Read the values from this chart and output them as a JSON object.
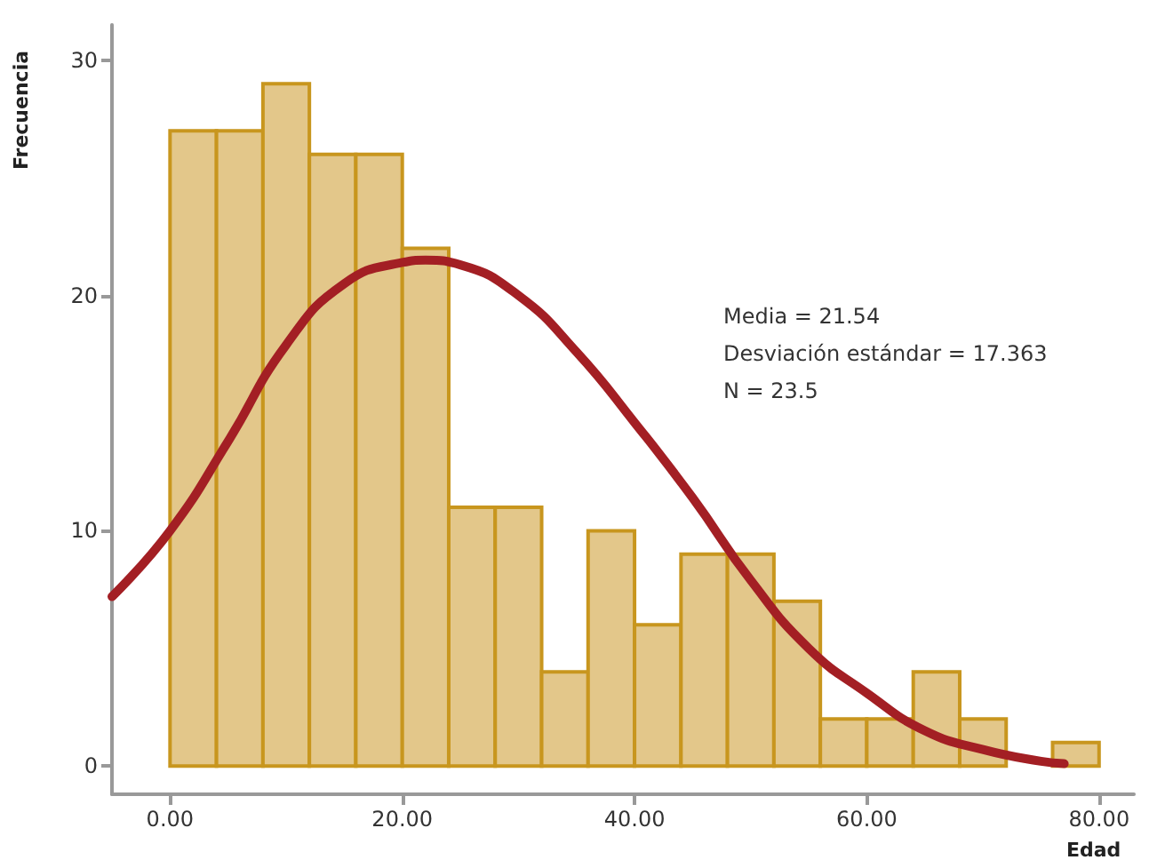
{
  "chart_data": {
    "type": "histogram",
    "xlabel": "Edad",
    "ylabel": "Frecuencia",
    "bins": [
      0,
      4,
      8,
      12,
      16,
      20,
      24,
      28,
      32,
      36,
      40,
      44,
      48,
      52,
      56,
      60,
      64,
      68,
      72,
      76,
      80
    ],
    "values": [
      27,
      27,
      29,
      26,
      26,
      22,
      11,
      11,
      4,
      10,
      6,
      9,
      9,
      7,
      2,
      2,
      4,
      2,
      0,
      1
    ],
    "color": "#e3c78a",
    "series": [
      {
        "type": "line",
        "color": "#a31f24",
        "x": [
          -5,
          0,
          5,
          10,
          15,
          20,
          22,
          25,
          30,
          35,
          40,
          45,
          50,
          55,
          60,
          65,
          70,
          75,
          77
        ],
        "values": [
          7.2,
          10,
          13.8,
          17.9,
          20.5,
          21.4,
          21.5,
          21.3,
          20,
          17.6,
          14.6,
          11.4,
          7.9,
          5,
          3.1,
          1.5,
          0.7,
          0.2,
          0.1
        ]
      }
    ],
    "marker": "none",
    "line_style": "solid",
    "xlim": [
      -5,
      83
    ],
    "ylim": [
      -1.2,
      31.5
    ],
    "xticks": [
      {
        "value": 0,
        "label": "0.00"
      },
      {
        "value": 20,
        "label": "20.00"
      },
      {
        "value": 40,
        "label": "40.00"
      },
      {
        "value": 60,
        "label": "60.00"
      },
      {
        "value": 80,
        "label": "80.00"
      }
    ],
    "yticks": [
      0,
      10,
      20,
      30
    ],
    "grid": false,
    "annotations": [
      "Media = 21.54",
      "Desviación estándar = 17.363",
      "N = 23.5"
    ]
  }
}
